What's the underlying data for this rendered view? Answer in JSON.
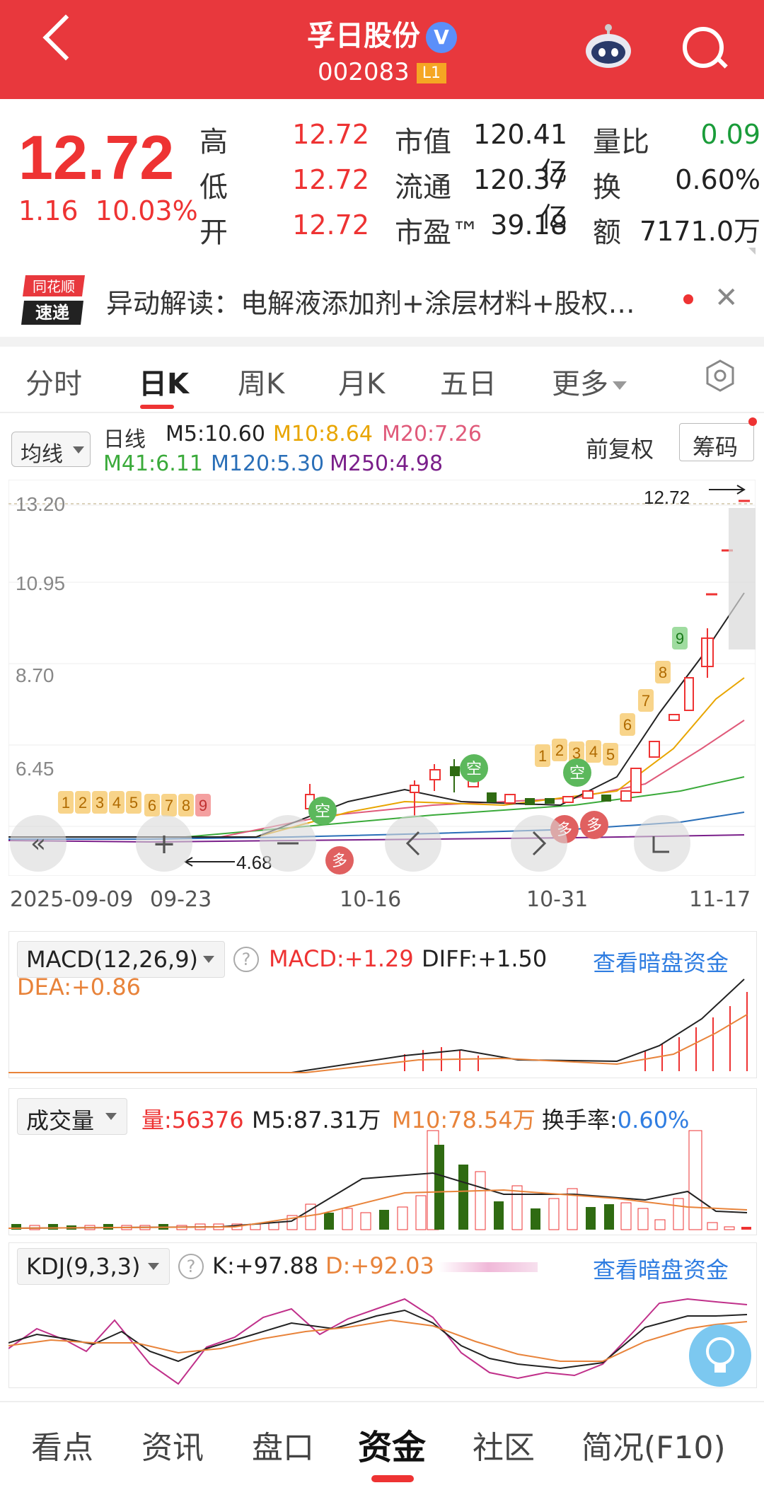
{
  "header": {
    "title": "孚日股份",
    "verified_mark": "V",
    "code": "002083",
    "level_badge": "L1"
  },
  "quote": {
    "price": "12.72",
    "change": "1.16",
    "change_pct": "10.03%",
    "rows": [
      {
        "l1": "高",
        "v1": "12.72",
        "l2": "市值",
        "v2": "120.41亿",
        "l3": "量比",
        "v3": "0.09"
      },
      {
        "l1": "低",
        "v1": "12.72",
        "l2": "流通",
        "v2": "120.37亿",
        "l3": "换",
        "v3": "0.60%"
      },
      {
        "l1": "开",
        "v1": "12.72",
        "l2": "市盈™",
        "v2": "39.18",
        "l3": "额",
        "v3": "7171.0万"
      }
    ]
  },
  "news": {
    "logo_top": "同花顺",
    "logo_bottom": "速递",
    "text": "异动解读：电解液添加剂+涂层材料+股权…"
  },
  "tabs": [
    "分时",
    "日K",
    "周K",
    "月K",
    "五日",
    "更多"
  ],
  "kline": {
    "ma_select": "均线",
    "period": "日线",
    "ma": [
      {
        "label": "M5:10.60",
        "color": "#222222"
      },
      {
        "label": "M10:8.64",
        "color": "#e8a500"
      },
      {
        "label": "M20:7.26",
        "color": "#e05a7a"
      },
      {
        "label": "M41:6.11",
        "color": "#3aaa3a"
      },
      {
        "label": "M120:5.30",
        "color": "#2a6fb8"
      },
      {
        "label": "M250:4.98",
        "color": "#7a1f8a"
      }
    ],
    "adjust": "前复权",
    "chips_button": "筹码",
    "y_ticks": [
      "13.20",
      "10.95",
      "8.70",
      "6.45"
    ],
    "max_label": "12.72",
    "min_label": "4.68",
    "x_ticks": [
      "2025-09-09",
      "09-23",
      "10-16",
      "10-31",
      "11-17"
    ],
    "signals_a": [
      "1",
      "2",
      "3",
      "4",
      "5",
      "6",
      "7",
      "8",
      "9"
    ],
    "signals_b": [
      "1",
      "2",
      "3",
      "4",
      "5",
      "6",
      "7",
      "8",
      "9"
    ],
    "kong": "空",
    "duo": "多"
  },
  "macd": {
    "select": "MACD(12,26,9)",
    "macd": "MACD:+1.29",
    "diff": "DIFF:+1.50",
    "dea": "DEA:+0.86",
    "link": "查看暗盘资金"
  },
  "volume": {
    "select": "成交量",
    "vol": "量:56376",
    "m5": "M5:87.31万",
    "m10": "M10:78.54万",
    "turnover_label": "换手率:",
    "turnover_value": "0.60%"
  },
  "kdj": {
    "select": "KDJ(9,3,3)",
    "k": "K:+97.88",
    "d": "D:+92.03",
    "link": "查看暗盘资金"
  },
  "bottom_tabs": [
    "看点",
    "资讯",
    "盘口",
    "资金",
    "社区",
    "简况(F10)"
  ]
}
